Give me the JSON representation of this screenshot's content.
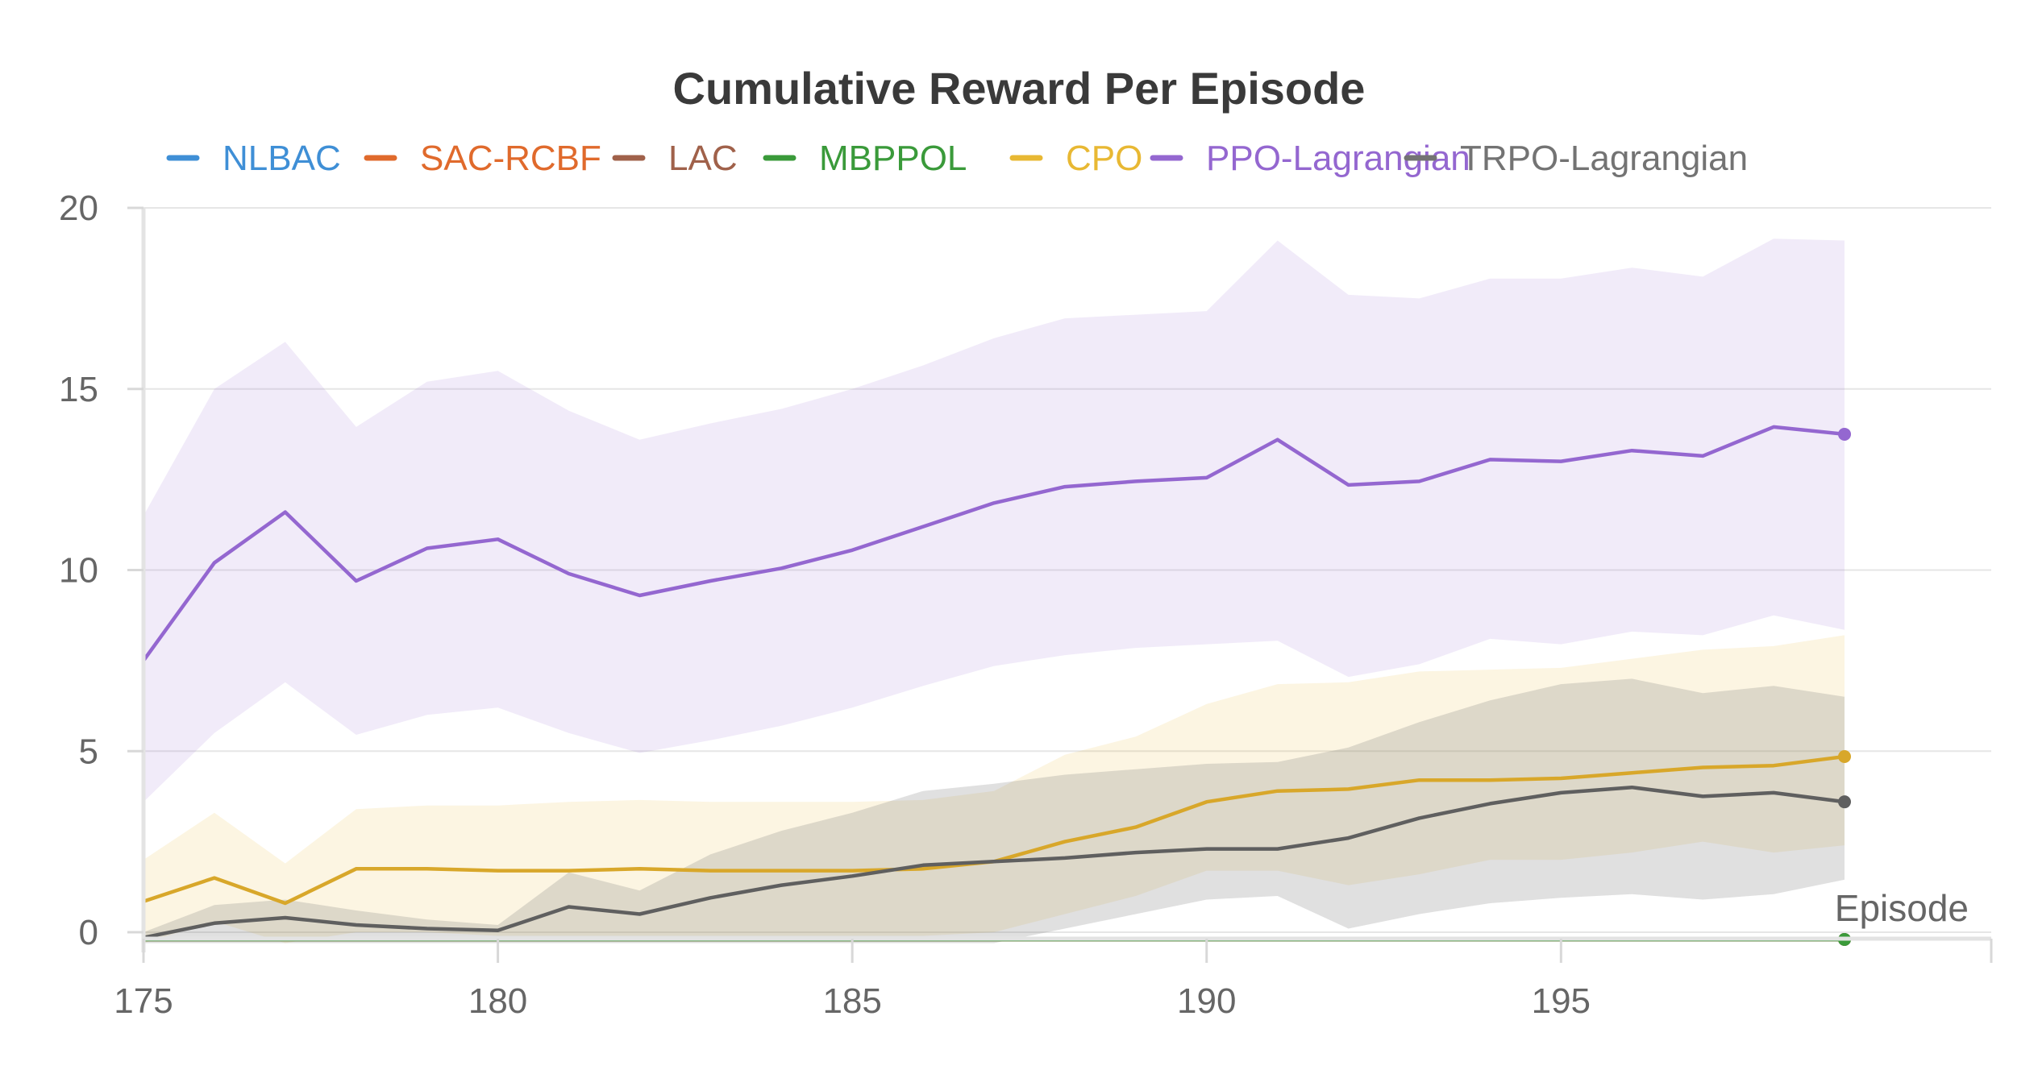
{
  "chart_data": {
    "type": "line",
    "title": "Cumulative Reward Per Episode",
    "xlabel": "Episode",
    "ylabel": "",
    "xlim": [
      175,
      200
    ],
    "ylim": [
      0,
      20
    ],
    "x_ticks": [
      175,
      180,
      185,
      190,
      195
    ],
    "y_ticks": [
      0,
      5,
      10,
      15,
      20
    ],
    "grid": true,
    "legend_position": "top",
    "x": [
      175,
      176,
      177,
      178,
      179,
      180,
      181,
      182,
      183,
      184,
      185,
      186,
      187,
      188,
      189,
      190,
      191,
      192,
      193,
      194,
      195,
      196,
      197,
      198,
      199
    ],
    "series": [
      {
        "name": "NLBAC",
        "color": "#3f8fd6",
        "values": [
          -0.2,
          -0.2,
          -0.2,
          -0.2,
          -0.2,
          -0.2,
          -0.2,
          -0.2,
          -0.2,
          -0.2,
          -0.2,
          -0.2,
          -0.2,
          -0.2,
          -0.2,
          -0.2,
          -0.2,
          -0.2,
          -0.2,
          -0.2,
          -0.2,
          -0.2,
          -0.2,
          -0.2,
          -0.2
        ]
      },
      {
        "name": "SAC-RCBF",
        "color": "#e06a2c",
        "values": [
          -0.2,
          -0.2,
          -0.2,
          -0.2,
          -0.2,
          -0.2,
          -0.2,
          -0.2,
          -0.2,
          -0.2,
          -0.2,
          -0.2,
          -0.2,
          -0.2,
          -0.2,
          -0.2,
          -0.2,
          -0.2,
          -0.2,
          -0.2,
          -0.2,
          -0.2,
          -0.2,
          -0.2,
          -0.2
        ]
      },
      {
        "name": "LAC",
        "color": "#a0614a",
        "values": [
          -0.2,
          -0.2,
          -0.2,
          -0.2,
          -0.2,
          -0.2,
          -0.2,
          -0.2,
          -0.2,
          -0.2,
          -0.2,
          -0.2,
          -0.2,
          -0.2,
          -0.2,
          -0.2,
          -0.2,
          -0.2,
          -0.2,
          -0.2,
          -0.2,
          -0.2,
          -0.2,
          -0.2,
          -0.2
        ]
      },
      {
        "name": "MBPPOL",
        "color": "#3a9a3a",
        "values": [
          -0.2,
          -0.2,
          -0.2,
          -0.2,
          -0.2,
          -0.2,
          -0.2,
          -0.2,
          -0.2,
          -0.2,
          -0.2,
          -0.2,
          -0.2,
          -0.2,
          -0.2,
          -0.2,
          -0.2,
          -0.2,
          -0.2,
          -0.2,
          -0.2,
          -0.2,
          -0.2,
          -0.2,
          -0.2
        ]
      },
      {
        "name": "CPO",
        "color": "#e8b833",
        "values": [
          0.85,
          1.5,
          0.8,
          1.75,
          1.75,
          1.7,
          1.7,
          1.75,
          1.7,
          1.7,
          1.7,
          1.75,
          1.95,
          2.5,
          2.9,
          3.6,
          3.9,
          3.95,
          4.2,
          4.2,
          4.25,
          4.4,
          4.55,
          4.6,
          4.85
        ],
        "lower": [
          -0.3,
          0.3,
          -0.3,
          0.0,
          0.0,
          -0.1,
          -0.1,
          -0.1,
          -0.1,
          -0.1,
          -0.1,
          -0.1,
          0.0,
          0.5,
          1.0,
          1.7,
          1.7,
          1.3,
          1.6,
          2.0,
          2.0,
          2.2,
          2.5,
          2.2,
          2.4
        ],
        "upper": [
          2.0,
          3.3,
          1.9,
          3.4,
          3.5,
          3.5,
          3.6,
          3.65,
          3.6,
          3.6,
          3.6,
          3.65,
          3.9,
          4.9,
          5.4,
          6.3,
          6.85,
          6.9,
          7.2,
          7.25,
          7.3,
          7.55,
          7.8,
          7.9,
          8.2
        ]
      },
      {
        "name": "PPO-Lagrangian",
        "color": "#9467d0",
        "values": [
          7.5,
          10.2,
          11.6,
          9.7,
          10.6,
          10.85,
          9.9,
          9.3,
          9.7,
          10.05,
          10.55,
          11.2,
          11.85,
          12.3,
          12.45,
          12.55,
          13.6,
          12.35,
          12.45,
          13.05,
          13.0,
          13.3,
          13.15,
          13.95,
          13.75
        ],
        "lower": [
          3.6,
          5.5,
          6.9,
          5.45,
          6.0,
          6.2,
          5.5,
          4.95,
          5.3,
          5.7,
          6.2,
          6.8,
          7.35,
          7.65,
          7.85,
          7.95,
          8.05,
          7.05,
          7.4,
          8.1,
          7.95,
          8.3,
          8.2,
          8.75,
          8.35
        ],
        "upper": [
          11.5,
          15.0,
          16.3,
          13.95,
          15.2,
          15.5,
          14.4,
          13.6,
          14.05,
          14.45,
          15.0,
          15.65,
          16.4,
          16.95,
          17.05,
          17.15,
          19.1,
          17.6,
          17.5,
          18.05,
          18.05,
          18.35,
          18.1,
          19.15,
          19.1
        ]
      },
      {
        "name": "TRPO-Lagrangian",
        "color": "#737373",
        "values": [
          -0.15,
          0.25,
          0.4,
          0.2,
          0.1,
          0.05,
          0.7,
          0.5,
          0.95,
          1.3,
          1.55,
          1.85,
          1.95,
          2.05,
          2.2,
          2.3,
          2.3,
          2.6,
          3.15,
          3.55,
          3.85,
          4.0,
          3.75,
          3.85,
          3.6
        ],
        "lower": [
          -0.3,
          -0.3,
          -0.3,
          -0.3,
          -0.3,
          -0.3,
          -0.3,
          -0.3,
          -0.3,
          -0.3,
          -0.3,
          -0.3,
          -0.3,
          0.1,
          0.5,
          0.9,
          1.0,
          0.1,
          0.5,
          0.8,
          0.95,
          1.05,
          0.9,
          1.05,
          1.45
        ],
        "upper": [
          0.0,
          0.75,
          0.9,
          0.6,
          0.35,
          0.2,
          1.65,
          1.15,
          2.15,
          2.8,
          3.3,
          3.9,
          4.1,
          4.35,
          4.5,
          4.65,
          4.7,
          5.1,
          5.8,
          6.4,
          6.85,
          7.0,
          6.6,
          6.8,
          6.5
        ]
      }
    ]
  }
}
